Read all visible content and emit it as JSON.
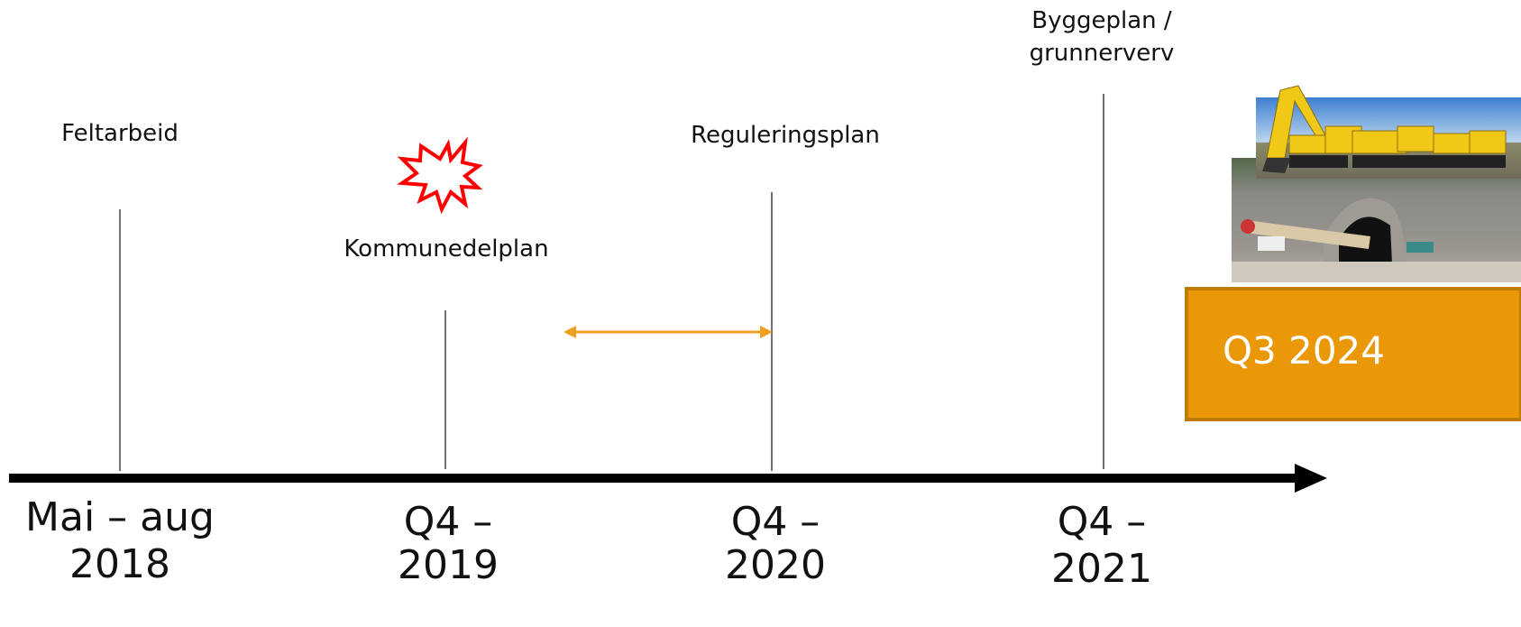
{
  "milestones": [
    {
      "label": [
        "Feltarbeid"
      ],
      "date": [
        "Mai – aug",
        "2018"
      ]
    },
    {
      "label": [
        "Kommunedelplan"
      ],
      "date": [
        "Q4 –",
        "2019"
      ]
    },
    {
      "label": [
        "Reguleringsplan"
      ],
      "date": [
        "Q4 –",
        "2020"
      ]
    },
    {
      "label": [
        "Byggeplan /",
        "grunnerverv"
      ],
      "date": [
        "Q4 –",
        "2021"
      ]
    }
  ],
  "current": {
    "label": "Q3 2024"
  }
}
